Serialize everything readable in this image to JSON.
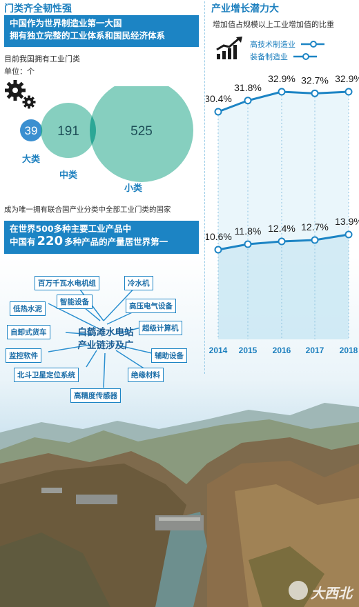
{
  "left": {
    "title": "门类齐全韧性强",
    "banner_line1": "中国作为世界制造业第一大国",
    "banner_line2": "拥有独立完整的工业体系和国民经济体系",
    "sub1": "目前我国拥有工业门类",
    "unit": "单位：个",
    "note": "成为唯一拥有联合国产业分类中全部工业门类的国家",
    "banner2_line1": "在世界500多种主要工业产品中",
    "banner2_line2_pre": "中国有",
    "banner2_line2_num": "220",
    "banner2_line2_post": "多种产品的产量居世界第一",
    "gear_icon": "gears-icon"
  },
  "categories_chart": {
    "type": "bubble",
    "items": [
      {
        "label": "大类",
        "value": 39
      },
      {
        "label": "中类",
        "value": 191
      },
      {
        "label": "小类",
        "value": 525
      }
    ],
    "colors": {
      "small": "#3a8fd0",
      "mid": "#86cfbf",
      "large": "#86cfbf",
      "overlap": "#2ca796"
    }
  },
  "product_map": {
    "hub_line1": "白鹤滩水电站",
    "hub_line2": "产业链涉及广",
    "products": [
      "百万千瓦水电机组",
      "冷水机",
      "智能设备",
      "低热水泥",
      "高压电气设备",
      "自卸式货车",
      "超级计算机",
      "监控软件",
      "辅助设备",
      "北斗卫星定位系统",
      "绝缘材料",
      "高精度传感器"
    ]
  },
  "right": {
    "title": "产业增长潜力大",
    "subtitle": "增加值占规模以上工业增加值的比重",
    "chart_icon": "growth-chart-icon"
  },
  "chart_data": {
    "type": "line",
    "x": [
      "2014",
      "2015",
      "2016",
      "2017",
      "2018"
    ],
    "series": [
      {
        "name": "高技术制造业",
        "values": [
          10.6,
          11.8,
          12.4,
          12.7,
          13.9
        ],
        "labels": [
          "10.6%",
          "11.8%",
          "12.4%",
          "12.7%",
          "13.9%"
        ]
      },
      {
        "name": "装备制造业",
        "values": [
          30.4,
          31.8,
          32.9,
          32.7,
          32.9
        ],
        "labels": [
          "30.4%",
          "31.8%",
          "32.9%",
          "32.7%",
          "32.9%"
        ]
      }
    ],
    "colors": {
      "line": "#1c84c4",
      "area": "#d8eef8"
    }
  },
  "watermark": "大西北"
}
